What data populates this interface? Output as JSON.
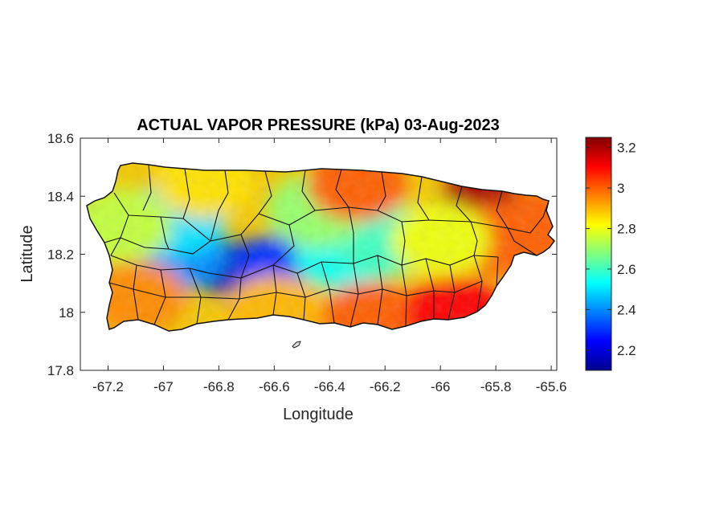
{
  "chart_data": {
    "type": "heatmap",
    "title": "ACTUAL VAPOR PRESSURE (kPa) 03-Aug-2023",
    "xlabel": "Longitude",
    "ylabel": "Latitude",
    "xlim": [
      -67.3,
      -65.58
    ],
    "ylim": [
      17.8,
      18.6
    ],
    "xticks": [
      {
        "v": -67.2,
        "label": "-67.2"
      },
      {
        "v": -67.0,
        "label": "-67"
      },
      {
        "v": -66.8,
        "label": "-66.8"
      },
      {
        "v": -66.6,
        "label": "-66.6"
      },
      {
        "v": -66.4,
        "label": "-66.4"
      },
      {
        "v": -66.2,
        "label": "-66.2"
      },
      {
        "v": -66.0,
        "label": "-66"
      },
      {
        "v": -65.8,
        "label": "-65.8"
      },
      {
        "v": -65.6,
        "label": "-65.6"
      }
    ],
    "yticks": [
      {
        "v": 17.8,
        "label": "17.8"
      },
      {
        "v": 18.0,
        "label": "18"
      },
      {
        "v": 18.2,
        "label": "18.2"
      },
      {
        "v": 18.4,
        "label": "18.4"
      },
      {
        "v": 18.6,
        "label": "18.6"
      }
    ],
    "colorbar": {
      "colormap": "jet",
      "clim": [
        2.1,
        3.25
      ],
      "ticks": [
        {
          "v": 2.2,
          "label": "2.2"
        },
        {
          "v": 2.4,
          "label": "2.4"
        },
        {
          "v": 2.6,
          "label": "2.6"
        },
        {
          "v": 2.8,
          "label": "2.8"
        },
        {
          "v": 3.0,
          "label": "3"
        },
        {
          "v": 3.2,
          "label": "3.2"
        }
      ]
    },
    "field_anchors": [
      {
        "lon": -66.75,
        "lat": 18.15,
        "value": 2.15
      },
      {
        "lon": -66.6,
        "lat": 18.17,
        "value": 2.3
      },
      {
        "lon": -66.95,
        "lat": 18.2,
        "value": 2.4
      },
      {
        "lon": -66.95,
        "lat": 18.32,
        "value": 2.5
      },
      {
        "lon": -66.35,
        "lat": 18.2,
        "value": 2.55
      },
      {
        "lon": -66.2,
        "lat": 18.25,
        "value": 2.6
      },
      {
        "lon": -66.45,
        "lat": 18.35,
        "value": 2.7
      },
      {
        "lon": -67.15,
        "lat": 18.3,
        "value": 2.75
      },
      {
        "lon": -66.85,
        "lat": 18.45,
        "value": 2.85
      },
      {
        "lon": -67.1,
        "lat": 18.05,
        "value": 2.95
      },
      {
        "lon": -66.6,
        "lat": 18.0,
        "value": 2.9
      },
      {
        "lon": -66.25,
        "lat": 17.98,
        "value": 3.0
      },
      {
        "lon": -66.3,
        "lat": 18.44,
        "value": 3.0
      },
      {
        "lon": -65.85,
        "lat": 18.4,
        "value": 3.2
      },
      {
        "lon": -65.95,
        "lat": 18.0,
        "value": 3.1
      },
      {
        "lon": -65.78,
        "lat": 18.25,
        "value": 3.0
      },
      {
        "lon": -66.0,
        "lat": 18.25,
        "value": 2.8
      },
      {
        "lon": -65.62,
        "lat": 18.3,
        "value": 3.0
      }
    ],
    "grid": false
  }
}
